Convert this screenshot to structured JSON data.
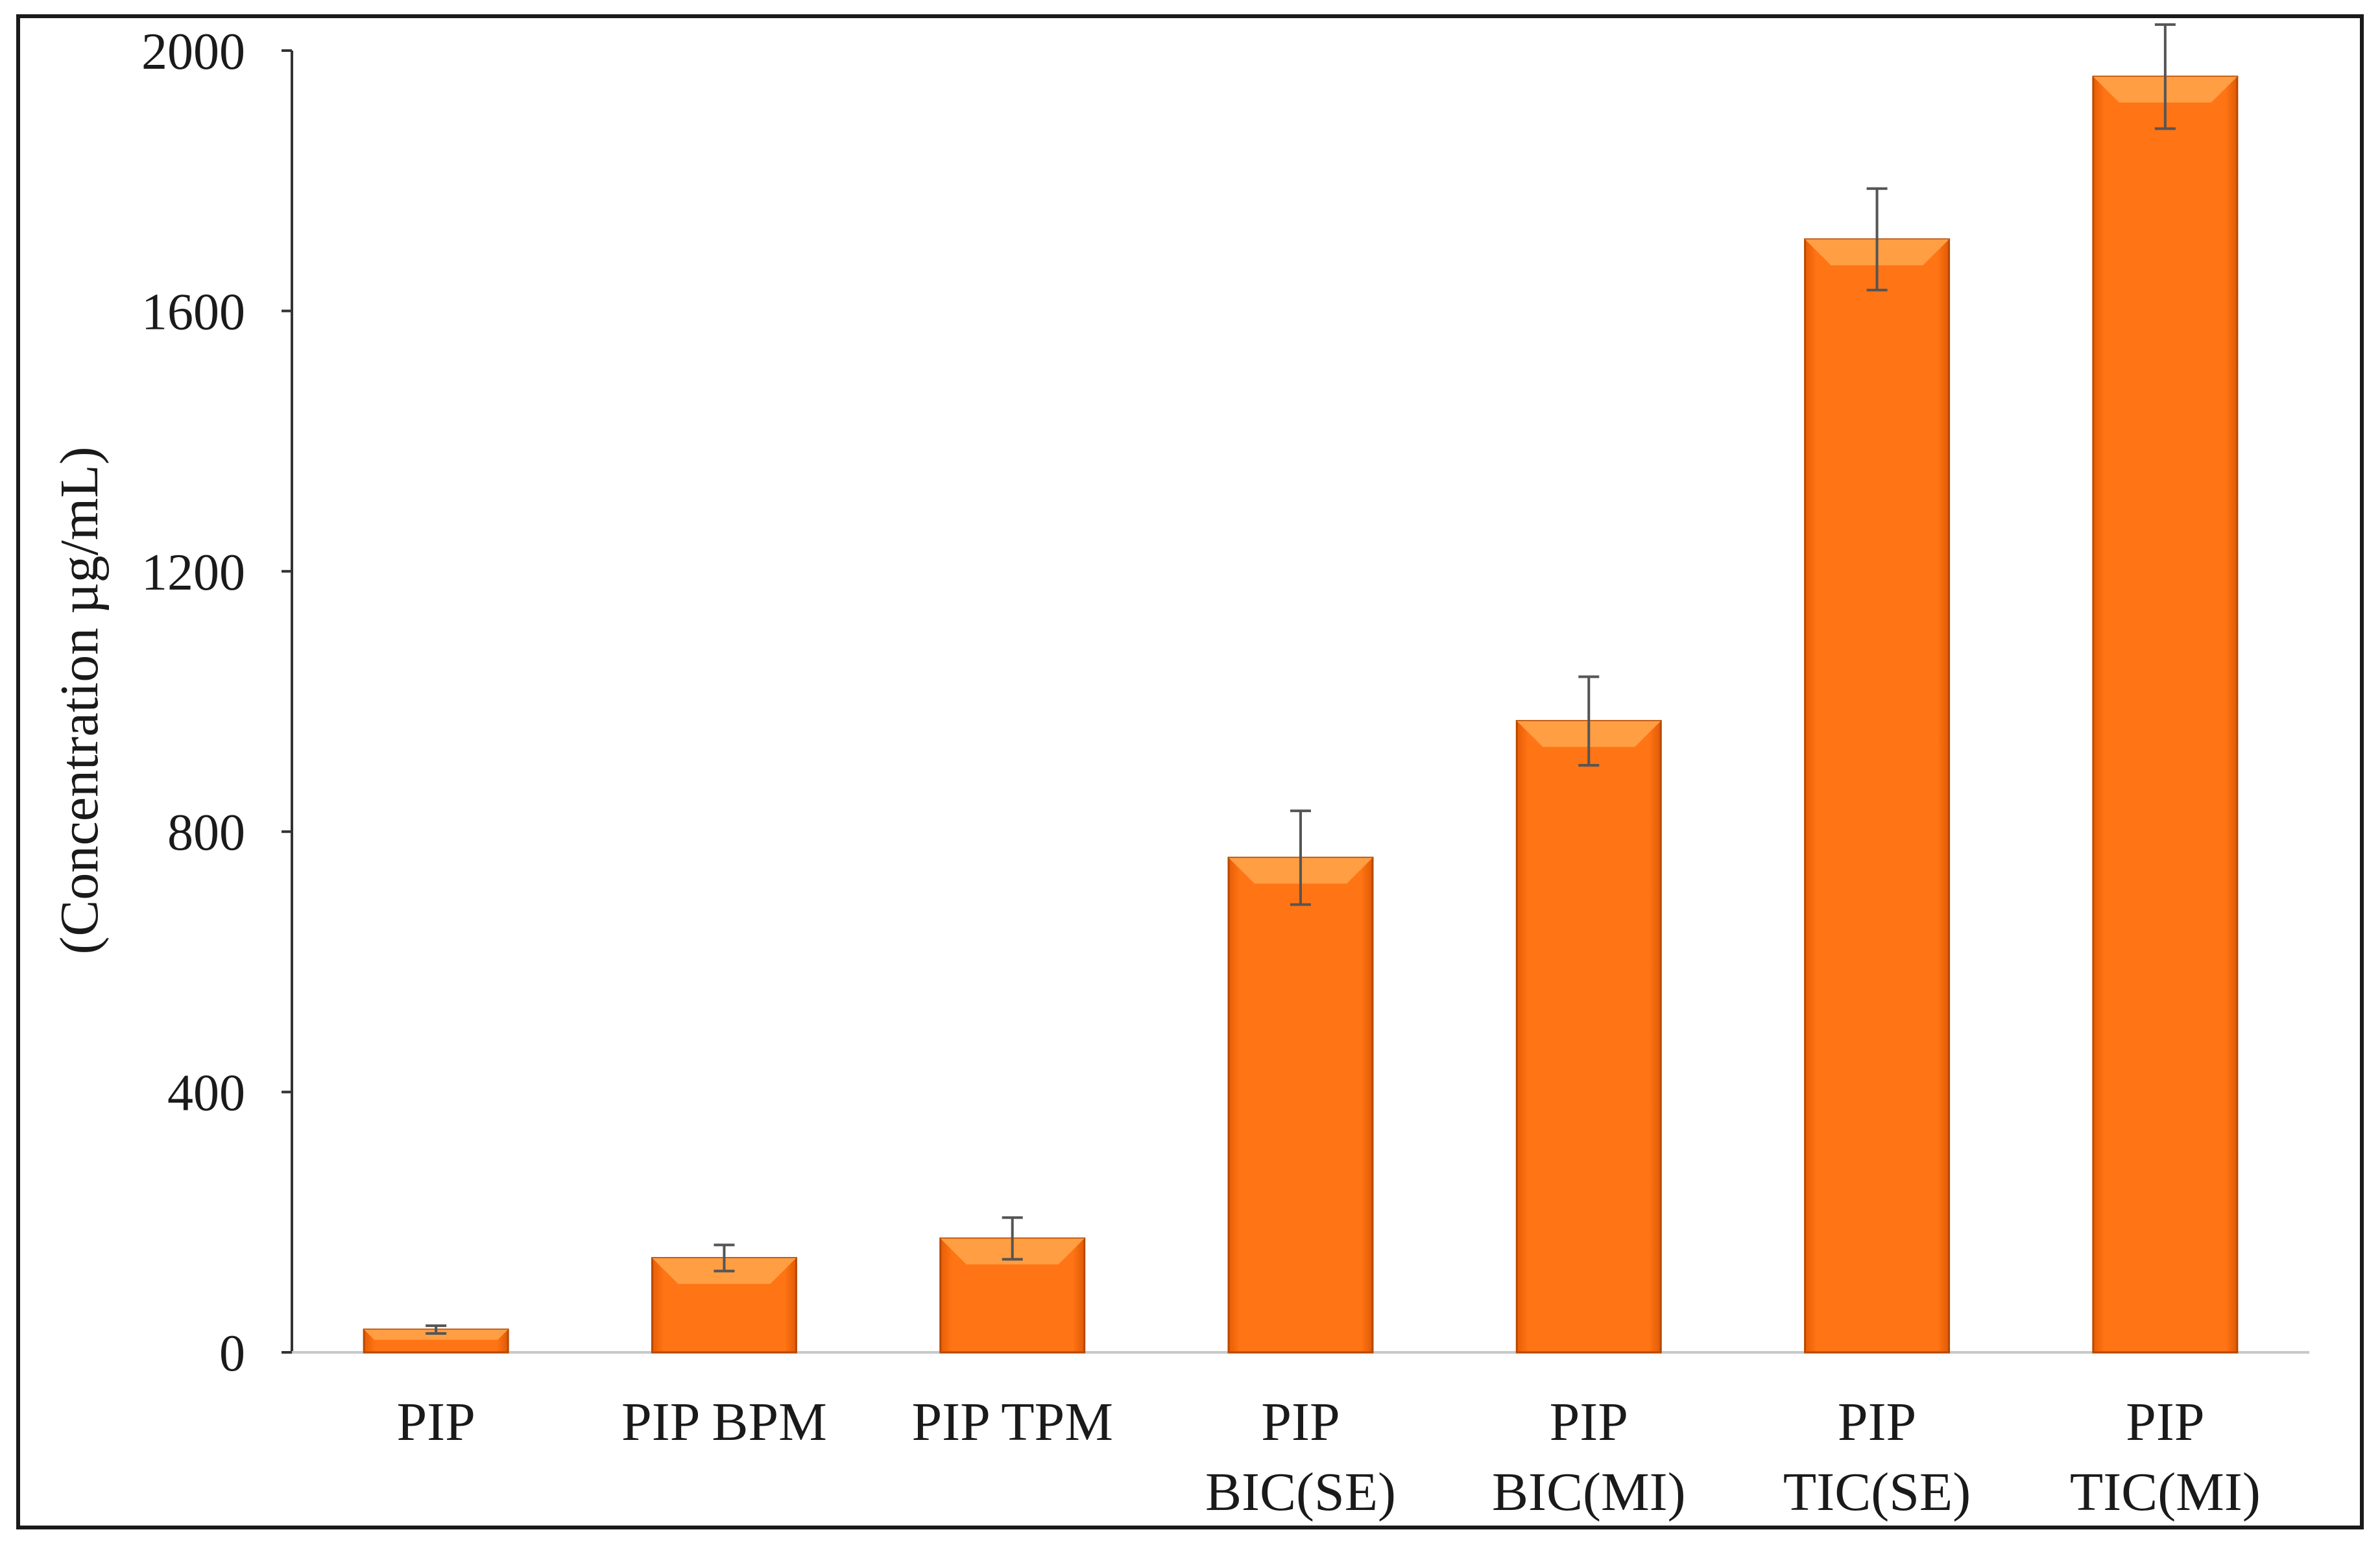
{
  "chart_data": {
    "type": "bar",
    "categories": [
      [
        "PIP"
      ],
      [
        "PIP BPM"
      ],
      [
        "PIP TPM"
      ],
      [
        "PIP",
        "BIC(SE)"
      ],
      [
        "PIP",
        "BIC(MI)"
      ],
      [
        "PIP",
        "TIC(SE)"
      ],
      [
        "PIP",
        "TIC(MI)"
      ]
    ],
    "values": [
      35,
      145,
      175,
      760,
      970,
      1710,
      1960
    ],
    "error_bars": [
      6,
      20,
      32,
      72,
      68,
      78,
      80
    ],
    "ylabel": "(Concentration µg/mL)",
    "ylim": [
      0,
      2000
    ],
    "yticks": [
      0,
      400,
      800,
      1200,
      1600,
      2000
    ],
    "grid": false,
    "legend": "none",
    "colors": {
      "bar_fill": "#ff6f0f",
      "bar_top": "#ffa348",
      "bar_edge": "#b64900",
      "error_bar": "#555555",
      "axis": "#333333",
      "frame": "#1a1a1a"
    }
  }
}
